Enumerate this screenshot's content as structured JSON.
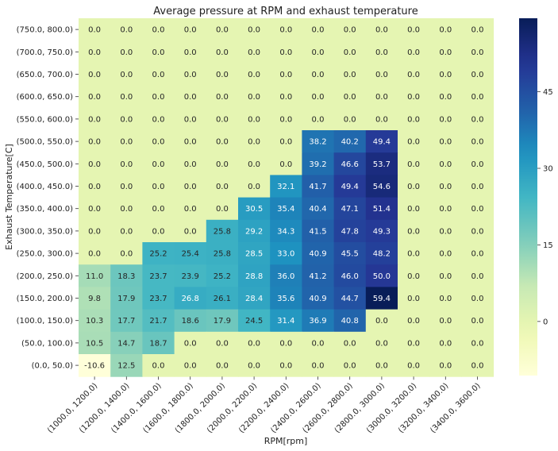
{
  "chart_data": {
    "type": "heatmap",
    "title": "Average pressure at RPM and exhaust temperature",
    "xlabel": "RPM[rpm]",
    "ylabel": "Exhaust Temperature[C]",
    "colormap": "YlGnBu",
    "color_range": [
      -10.6,
      59.4
    ],
    "colorbar_ticks": [
      0,
      15,
      30,
      45
    ],
    "x_categories": [
      "(1000.0, 1200.0)",
      "(1200.0, 1400.0)",
      "(1400.0, 1600.0)",
      "(1600.0, 1800.0)",
      "(1800.0, 2000.0)",
      "(2000.0, 2200.0)",
      "(2200.0, 2400.0)",
      "(2400.0, 2600.0)",
      "(2600.0, 2800.0)",
      "(2800.0, 3000.0)",
      "(3000.0, 3200.0)",
      "(3200.0, 3400.0)",
      "(3400.0, 3600.0)"
    ],
    "y_categories": [
      "(750.0, 800.0)",
      "(700.0, 750.0)",
      "(650.0, 700.0)",
      "(600.0, 650.0)",
      "(550.0, 600.0)",
      "(500.0, 550.0)",
      "(450.0, 500.0)",
      "(400.0, 450.0)",
      "(350.0, 400.0)",
      "(300.0, 350.0)",
      "(250.0, 300.0)",
      "(200.0, 250.0)",
      "(150.0, 200.0)",
      "(100.0, 150.0)",
      "(50.0, 100.0)",
      "(0.0, 50.0)"
    ],
    "values": [
      [
        0,
        0,
        0,
        0,
        0,
        0,
        0,
        0,
        0,
        0,
        0,
        0,
        0
      ],
      [
        0,
        0,
        0,
        0,
        0,
        0,
        0,
        0,
        0,
        0,
        0,
        0,
        0
      ],
      [
        0,
        0,
        0,
        0,
        0,
        0,
        0,
        0,
        0,
        0,
        0,
        0,
        0
      ],
      [
        0,
        0,
        0,
        0,
        0,
        0,
        0,
        0,
        0,
        0,
        0,
        0,
        0
      ],
      [
        0,
        0,
        0,
        0,
        0,
        0,
        0,
        0,
        0,
        0,
        0,
        0,
        0
      ],
      [
        0,
        0,
        0,
        0,
        0,
        0,
        0,
        38.2,
        40.2,
        49.4,
        0,
        0,
        0
      ],
      [
        0,
        0,
        0,
        0,
        0,
        0,
        0,
        39.2,
        46.6,
        53.7,
        0,
        0,
        0
      ],
      [
        0,
        0,
        0,
        0,
        0,
        0,
        32.1,
        41.7,
        49.4,
        54.6,
        0,
        0,
        0
      ],
      [
        0,
        0,
        0,
        0,
        0,
        30.5,
        35.4,
        40.4,
        47.1,
        51.4,
        0,
        0,
        0
      ],
      [
        0,
        0,
        0,
        0,
        25.8,
        29.2,
        34.3,
        41.5,
        47.8,
        49.3,
        0,
        0,
        0
      ],
      [
        0,
        0,
        25.2,
        25.4,
        25.8,
        28.5,
        33.0,
        40.9,
        45.5,
        48.2,
        0,
        0,
        0
      ],
      [
        11.0,
        18.3,
        23.7,
        23.9,
        25.2,
        28.8,
        36.0,
        41.2,
        46.0,
        50.0,
        0,
        0,
        0
      ],
      [
        9.8,
        17.9,
        23.7,
        26.8,
        26.1,
        28.4,
        35.6,
        40.9,
        44.7,
        59.4,
        0,
        0,
        0
      ],
      [
        10.3,
        17.7,
        21.7,
        18.6,
        17.9,
        24.5,
        31.4,
        36.9,
        40.8,
        0,
        0,
        0,
        0
      ],
      [
        10.5,
        14.7,
        18.7,
        0,
        0,
        0,
        0,
        0,
        0,
        0,
        0,
        0,
        0
      ],
      [
        -10.6,
        12.5,
        0,
        0,
        0,
        0,
        0,
        0,
        0,
        0,
        0,
        0,
        0
      ]
    ]
  }
}
